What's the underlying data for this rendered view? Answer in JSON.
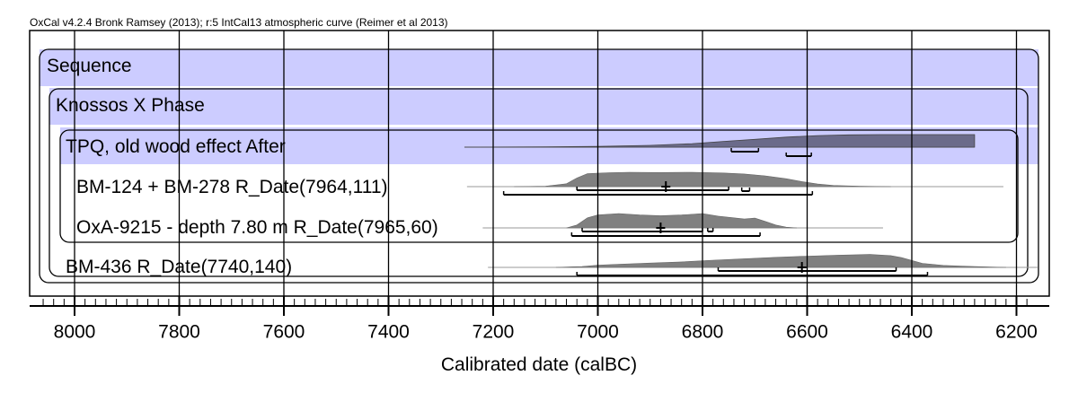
{
  "credit": "OxCal v4.2.4 Bronk Ramsey (2013); r:5 IntCal13 atmospheric curve (Reimer et al 2013)",
  "chart_data": {
    "type": "oxcal-multiplot",
    "xlabel": "Calibrated date (calBC)",
    "xlim": [
      8060,
      6170
    ],
    "x_reversed": true,
    "major_ticks": [
      8000,
      7800,
      7600,
      7400,
      7200,
      7000,
      6800,
      6600,
      6400,
      6200
    ],
    "tick_labels": [
      "8000",
      "7800",
      "7600",
      "7400",
      "7200",
      "7000",
      "6800",
      "6600",
      "6400",
      "6200"
    ],
    "minor_tick_step": 20,
    "grid": true,
    "groups": [
      {
        "label": "Sequence",
        "kind": "sequence"
      },
      {
        "label": "Knossos X Phase",
        "kind": "phase"
      },
      {
        "label": "TPQ, old wood effect After",
        "kind": "boundary"
      }
    ],
    "rows": [
      {
        "label": "TPQ, old wood effect After",
        "kind": "after",
        "prior_range": [
          7255,
          6280
        ],
        "posterior_shape": [
          [
            7255,
            0.0
          ],
          [
            7100,
            0.02
          ],
          [
            7000,
            0.06
          ],
          [
            6900,
            0.14
          ],
          [
            6820,
            0.28
          ],
          [
            6760,
            0.46
          ],
          [
            6700,
            0.62
          ],
          [
            6640,
            0.8
          ],
          [
            6580,
            0.92
          ],
          [
            6520,
            0.98
          ],
          [
            6460,
            1.0
          ],
          [
            6280,
            1.0
          ]
        ],
        "range_68": [
          [
            6745,
            6693
          ],
          [
            6640,
            6592
          ]
        ]
      },
      {
        "label": "BM-124 + BM-278 R_Date(7964,111)",
        "kind": "date",
        "line_extent": [
          7250,
          6225
        ],
        "distribution": [
          [
            7160,
            0.0
          ],
          [
            7100,
            0.03
          ],
          [
            7060,
            0.2
          ],
          [
            7040,
            0.6
          ],
          [
            7020,
            0.9
          ],
          [
            6980,
            0.97
          ],
          [
            6940,
            1.0
          ],
          [
            6880,
            0.98
          ],
          [
            6820,
            1.0
          ],
          [
            6760,
            0.95
          ],
          [
            6720,
            0.88
          ],
          [
            6680,
            0.75
          ],
          [
            6640,
            0.55
          ],
          [
            6610,
            0.35
          ],
          [
            6580,
            0.18
          ],
          [
            6550,
            0.08
          ],
          [
            6500,
            0.03
          ],
          [
            6440,
            0.0
          ]
        ],
        "median": 6870,
        "range_68": [
          [
            7040,
            6750
          ],
          [
            6725,
            6710
          ]
        ],
        "range_95": [
          [
            7180,
            6590
          ]
        ]
      },
      {
        "label": "OxA-9215 - depth 7.80 m R_Date(7965,60)",
        "kind": "date",
        "line_extent": [
          7220,
          6455
        ],
        "distribution": [
          [
            7060,
            0.0
          ],
          [
            7040,
            0.2
          ],
          [
            7020,
            0.7
          ],
          [
            7000,
            0.9
          ],
          [
            6960,
            1.0
          ],
          [
            6920,
            0.9
          ],
          [
            6880,
            0.85
          ],
          [
            6840,
            0.9
          ],
          [
            6800,
            1.0
          ],
          [
            6770,
            0.82
          ],
          [
            6740,
            0.7
          ],
          [
            6720,
            0.62
          ],
          [
            6700,
            0.68
          ],
          [
            6680,
            0.45
          ],
          [
            6660,
            0.2
          ],
          [
            6640,
            0.05
          ],
          [
            6620,
            0.0
          ]
        ],
        "median": 6880,
        "range_68": [
          [
            7030,
            6800
          ],
          [
            6790,
            6780
          ]
        ],
        "range_95": [
          [
            7050,
            6690
          ]
        ]
      },
      {
        "label": "BM-436 R_Date(7740,140)",
        "kind": "date",
        "line_extent": [
          7210,
          6160
        ],
        "distribution": [
          [
            7080,
            0.0
          ],
          [
            7030,
            0.06
          ],
          [
            7000,
            0.15
          ],
          [
            6960,
            0.22
          ],
          [
            6900,
            0.3
          ],
          [
            6840,
            0.38
          ],
          [
            6780,
            0.5
          ],
          [
            6720,
            0.6
          ],
          [
            6660,
            0.7
          ],
          [
            6600,
            0.78
          ],
          [
            6540,
            0.85
          ],
          [
            6480,
            0.9
          ],
          [
            6440,
            0.82
          ],
          [
            6420,
            0.68
          ],
          [
            6400,
            0.48
          ],
          [
            6380,
            0.28
          ],
          [
            6340,
            0.14
          ],
          [
            6300,
            0.08
          ],
          [
            6260,
            0.04
          ],
          [
            6220,
            0.0
          ]
        ],
        "median": 6610,
        "range_68": [
          [
            6770,
            6430
          ]
        ],
        "range_95": [
          [
            7040,
            6370
          ]
        ]
      }
    ]
  }
}
